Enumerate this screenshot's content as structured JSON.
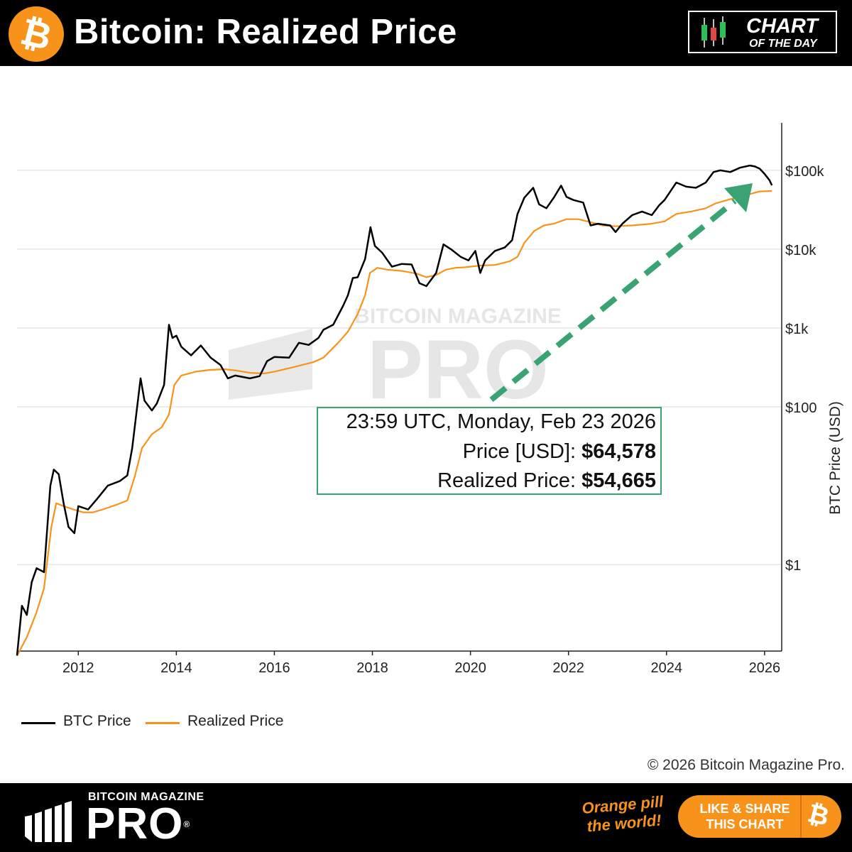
{
  "header": {
    "title": "Bitcoin: Realized Price",
    "badge_line1": "CHART",
    "badge_line2": "OF THE DAY"
  },
  "tooltip": {
    "timestamp": "23:59 UTC, Monday, Feb 23 2026",
    "price_label": "Price [USD]: ",
    "price_value": "$64,578",
    "realized_label": "Realized Price: ",
    "realized_value": "$54,665"
  },
  "watermark": {
    "line1": "BITCOIN MAGAZINE",
    "line2": "PRO"
  },
  "legend": {
    "btc_label": "BTC Price",
    "realized_label": "Realized Price"
  },
  "copyright": "© 2026 Bitcoin Magazine Pro.",
  "footer": {
    "brand_small": "BITCOIN MAGAZINE",
    "brand_big": "PRO",
    "reg_mark": "®",
    "tagline": "Orange pill the world!",
    "share_label": "LIKE & SHARE THIS CHART",
    "share_icon": "₿"
  },
  "colors": {
    "btc_line": "#000000",
    "realized_line": "#f7931a",
    "arrow": "#3aa374",
    "grid": "#e6e6e6"
  },
  "chart_data": {
    "type": "line",
    "y_scale": "log",
    "ylabel": "BTC Price (USD)",
    "ylim": [
      0.08,
      400000
    ],
    "xlim": [
      2010.75,
      2026.35
    ],
    "x_ticks": [
      2012,
      2014,
      2016,
      2018,
      2020,
      2022,
      2024,
      2026
    ],
    "x_tick_labels": [
      "2012",
      "2014",
      "2016",
      "2018",
      "2020",
      "2022",
      "2024",
      "2026"
    ],
    "y_ticks": [
      1,
      100,
      1000,
      10000,
      100000
    ],
    "y_tick_labels": [
      "$1",
      "$100",
      "$1k",
      "$10k",
      "$100k"
    ],
    "grid": true,
    "legend_position": "bottom-left",
    "annotation": "arrow pointing up-right to latest realized price",
    "series": [
      {
        "name": "BTC Price",
        "x": [
          2010.75,
          2010.85,
          2010.95,
          2011.05,
          2011.15,
          2011.3,
          2011.43,
          2011.5,
          2011.6,
          2011.7,
          2011.8,
          2011.92,
          2012.0,
          2012.2,
          2012.4,
          2012.6,
          2012.85,
          2013.0,
          2013.1,
          2013.27,
          2013.35,
          2013.5,
          2013.6,
          2013.75,
          2013.85,
          2013.92,
          2014.0,
          2014.1,
          2014.3,
          2014.5,
          2014.7,
          2014.9,
          2015.05,
          2015.2,
          2015.5,
          2015.7,
          2015.85,
          2016.0,
          2016.3,
          2016.5,
          2016.7,
          2016.9,
          2017.0,
          2017.2,
          2017.4,
          2017.5,
          2017.6,
          2017.7,
          2017.85,
          2017.96,
          2018.05,
          2018.2,
          2018.4,
          2018.6,
          2018.8,
          2018.96,
          2019.1,
          2019.3,
          2019.45,
          2019.6,
          2019.8,
          2019.96,
          2020.1,
          2020.2,
          2020.3,
          2020.5,
          2020.7,
          2020.85,
          2020.96,
          2021.1,
          2021.28,
          2021.4,
          2021.55,
          2021.7,
          2021.85,
          2021.96,
          2022.1,
          2022.3,
          2022.45,
          2022.6,
          2022.85,
          2022.96,
          2023.1,
          2023.3,
          2023.5,
          2023.7,
          2023.85,
          2023.96,
          2024.2,
          2024.4,
          2024.6,
          2024.8,
          2024.96,
          2025.1,
          2025.3,
          2025.5,
          2025.7,
          2025.8,
          2025.9,
          2026.0,
          2026.1,
          2026.15
        ],
        "values": [
          0.07,
          0.3,
          0.23,
          0.6,
          0.9,
          0.8,
          10,
          16,
          14,
          6,
          3,
          2.5,
          5.5,
          5,
          7,
          10,
          11.5,
          13.5,
          30,
          230,
          120,
          90,
          110,
          190,
          1100,
          750,
          800,
          580,
          450,
          600,
          420,
          340,
          230,
          250,
          230,
          245,
          380,
          430,
          420,
          650,
          610,
          750,
          950,
          1100,
          1900,
          2600,
          4300,
          4400,
          7500,
          19000,
          11000,
          9000,
          6000,
          6500,
          6400,
          3700,
          3400,
          5000,
          11500,
          10000,
          8000,
          7200,
          9500,
          5000,
          7200,
          9500,
          10500,
          13000,
          28000,
          45000,
          60000,
          37000,
          33000,
          45000,
          64000,
          46000,
          42000,
          39000,
          20000,
          21000,
          20000,
          16500,
          21000,
          27000,
          30000,
          27000,
          36000,
          42000,
          70000,
          62000,
          60000,
          70000,
          95000,
          100000,
          95000,
          108000,
          115000,
          112000,
          105000,
          90000,
          75000,
          64578
        ]
      },
      {
        "name": "Realized Price",
        "x": [
          2010.75,
          2010.95,
          2011.15,
          2011.3,
          2011.45,
          2011.55,
          2011.7,
          2011.9,
          2012.1,
          2012.3,
          2012.5,
          2012.8,
          2013.0,
          2013.15,
          2013.3,
          2013.5,
          2013.7,
          2013.85,
          2013.96,
          2014.1,
          2014.4,
          2014.7,
          2015.0,
          2015.2,
          2015.5,
          2015.8,
          2016.0,
          2016.4,
          2016.8,
          2017.0,
          2017.3,
          2017.5,
          2017.7,
          2017.85,
          2017.95,
          2018.1,
          2018.3,
          2018.6,
          2018.9,
          2019.1,
          2019.3,
          2019.5,
          2019.7,
          2019.9,
          2020.2,
          2020.5,
          2020.8,
          2020.96,
          2021.1,
          2021.3,
          2021.5,
          2021.7,
          2021.96,
          2022.2,
          2022.45,
          2022.7,
          2022.96,
          2023.3,
          2023.7,
          2023.96,
          2024.2,
          2024.5,
          2024.8,
          2025.0,
          2025.3,
          2025.6,
          2025.9,
          2026.15
        ],
        "values": [
          0.07,
          0.12,
          0.25,
          0.5,
          3,
          6,
          5.5,
          5,
          4.6,
          4.6,
          5,
          5.8,
          6.5,
          13,
          30,
          45,
          55,
          80,
          190,
          250,
          280,
          295,
          300,
          290,
          270,
          265,
          280,
          320,
          370,
          420,
          650,
          900,
          1500,
          2600,
          5000,
          5800,
          5500,
          5300,
          4900,
          4400,
          4700,
          5500,
          5800,
          5900,
          6200,
          6300,
          7000,
          8000,
          12000,
          17000,
          20000,
          21000,
          24000,
          24000,
          22000,
          20000,
          19500,
          20000,
          21000,
          22500,
          28000,
          30000,
          33000,
          38000,
          43000,
          48000,
          54000,
          54665
        ]
      }
    ]
  }
}
